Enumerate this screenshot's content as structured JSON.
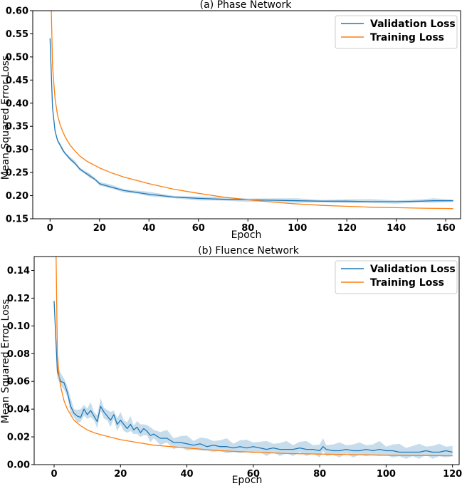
{
  "chart_data": [
    {
      "type": "line",
      "title": "(a) Phase Network",
      "xlabel": "Epoch",
      "ylabel": "Mean Squared Error Loss",
      "xlim": [
        -7,
        166
      ],
      "ylim": [
        0.15,
        0.6
      ],
      "xticks": [
        0,
        20,
        40,
        60,
        80,
        100,
        120,
        140,
        160
      ],
      "xtick_labels": [
        "0",
        "20",
        "40",
        "60",
        "80",
        "100",
        "120",
        "140",
        "160"
      ],
      "yticks": [
        0.15,
        0.2,
        0.25,
        0.3,
        0.35,
        0.4,
        0.45,
        0.5,
        0.55,
        0.6
      ],
      "ytick_labels": [
        "0.15",
        "0.20",
        "0.25",
        "0.30",
        "0.35",
        "0.40",
        "0.45",
        "0.50",
        "0.55",
        "0.60"
      ],
      "legend_position": "top-right",
      "series": [
        {
          "name": "Validation Loss",
          "color": "#1f77b4",
          "band": true,
          "x": [
            0,
            1,
            2,
            3,
            4,
            5,
            6,
            8,
            10,
            12,
            14,
            16,
            18,
            20,
            25,
            30,
            35,
            40,
            50,
            60,
            70,
            80,
            90,
            100,
            110,
            120,
            130,
            140,
            150,
            155,
            163
          ],
          "y": [
            0.54,
            0.39,
            0.34,
            0.32,
            0.31,
            0.3,
            0.292,
            0.28,
            0.27,
            0.258,
            0.25,
            0.243,
            0.236,
            0.226,
            0.218,
            0.211,
            0.207,
            0.203,
            0.197,
            0.194,
            0.192,
            0.191,
            0.19,
            0.189,
            0.188,
            0.188,
            0.187,
            0.187,
            0.188,
            0.189,
            0.189
          ]
        },
        {
          "name": "Training Loss",
          "color": "#ff7f0e",
          "band": false,
          "x": [
            0.5,
            1,
            2,
            3,
            4,
            5,
            6,
            8,
            10,
            12,
            15,
            20,
            25,
            30,
            40,
            50,
            60,
            70,
            80,
            90,
            100,
            110,
            120,
            130,
            140,
            150,
            163
          ],
          "y": [
            0.6,
            0.48,
            0.41,
            0.375,
            0.355,
            0.34,
            0.328,
            0.31,
            0.297,
            0.286,
            0.274,
            0.26,
            0.249,
            0.24,
            0.226,
            0.214,
            0.205,
            0.197,
            0.191,
            0.186,
            0.182,
            0.179,
            0.177,
            0.175,
            0.174,
            0.173,
            0.172
          ]
        }
      ]
    },
    {
      "type": "line",
      "title": "(b) Fluence Network",
      "xlabel": "Epoch",
      "ylabel": "Mean Squared Error Loss",
      "xlim": [
        -6,
        122
      ],
      "ylim": [
        0.0,
        0.15
      ],
      "xticks": [
        0,
        20,
        40,
        60,
        80,
        100,
        120
      ],
      "xtick_labels": [
        "0",
        "20",
        "40",
        "60",
        "80",
        "100",
        "120"
      ],
      "yticks": [
        0.0,
        0.02,
        0.04,
        0.06,
        0.08,
        0.1,
        0.12,
        0.14
      ],
      "ytick_labels": [
        "0.00",
        "0.02",
        "0.04",
        "0.06",
        "0.08",
        "0.10",
        "0.12",
        "0.14"
      ],
      "legend_position": "top-right",
      "series": [
        {
          "name": "Validation Loss",
          "color": "#1f77b4",
          "band": true,
          "x": [
            0,
            1,
            2,
            3,
            4,
            5,
            6,
            7,
            8,
            9,
            10,
            11,
            12,
            13,
            14,
            15,
            16,
            17,
            18,
            19,
            20,
            21,
            22,
            23,
            24,
            25,
            26,
            27,
            28,
            29,
            30,
            32,
            34,
            36,
            38,
            40,
            42,
            44,
            46,
            48,
            50,
            52,
            54,
            56,
            58,
            60,
            62,
            64,
            66,
            68,
            70,
            72,
            74,
            76,
            78,
            80,
            81,
            82,
            84,
            86,
            88,
            90,
            92,
            94,
            96,
            98,
            100,
            102,
            104,
            106,
            108,
            110,
            112,
            114,
            116,
            118,
            120
          ],
          "y": [
            0.118,
            0.067,
            0.06,
            0.059,
            0.052,
            0.042,
            0.037,
            0.035,
            0.034,
            0.04,
            0.036,
            0.039,
            0.035,
            0.031,
            0.042,
            0.038,
            0.035,
            0.032,
            0.036,
            0.029,
            0.032,
            0.029,
            0.026,
            0.029,
            0.025,
            0.027,
            0.023,
            0.026,
            0.024,
            0.021,
            0.022,
            0.019,
            0.019,
            0.016,
            0.016,
            0.015,
            0.014,
            0.015,
            0.013,
            0.014,
            0.013,
            0.013,
            0.012,
            0.013,
            0.012,
            0.013,
            0.012,
            0.011,
            0.012,
            0.011,
            0.011,
            0.011,
            0.012,
            0.011,
            0.011,
            0.01,
            0.013,
            0.011,
            0.01,
            0.01,
            0.011,
            0.01,
            0.01,
            0.011,
            0.01,
            0.011,
            0.01,
            0.01,
            0.009,
            0.009,
            0.009,
            0.009,
            0.01,
            0.009,
            0.009,
            0.01,
            0.009
          ]
        },
        {
          "name": "Training Loss",
          "color": "#ff7f0e",
          "band": false,
          "x": [
            0.6,
            1,
            1.5,
            2,
            3,
            4,
            5,
            6,
            8,
            10,
            12,
            15,
            20,
            25,
            30,
            40,
            50,
            60,
            70,
            80,
            90,
            100,
            110,
            120
          ],
          "y": [
            0.15,
            0.08,
            0.064,
            0.056,
            0.046,
            0.04,
            0.036,
            0.032,
            0.028,
            0.025,
            0.023,
            0.021,
            0.018,
            0.016,
            0.014,
            0.012,
            0.01,
            0.009,
            0.008,
            0.0076,
            0.0072,
            0.0068,
            0.0066,
            0.0064
          ]
        }
      ]
    }
  ]
}
